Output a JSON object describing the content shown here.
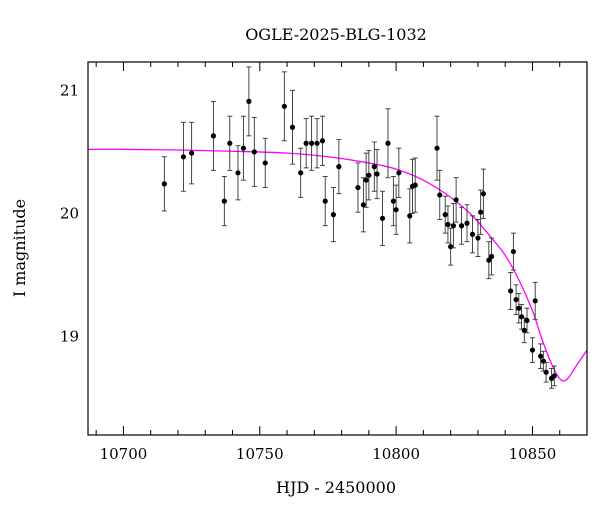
{
  "chart_data": {
    "type": "scatter",
    "title": "OGLE-2025-BLG-1032",
    "xlabel": "HJD - 2450000",
    "ylabel": "I magnitude",
    "xlim": [
      10687,
      10870
    ],
    "ylim": [
      21.23,
      18.2
    ],
    "y_inverted": true,
    "grid": false,
    "x_ticks": [
      10700,
      10750,
      10800,
      10850
    ],
    "y_ticks": [
      19,
      20,
      21
    ],
    "colors": {
      "points": "#000000",
      "model": "#ff00ff"
    },
    "model_curve": {
      "name": "",
      "points": [
        {
          "x": 10687,
          "y": 20.52
        },
        {
          "x": 10700,
          "y": 20.52
        },
        {
          "x": 10720,
          "y": 20.515
        },
        {
          "x": 10740,
          "y": 20.505
        },
        {
          "x": 10760,
          "y": 20.49
        },
        {
          "x": 10775,
          "y": 20.46
        },
        {
          "x": 10790,
          "y": 20.41
        },
        {
          "x": 10800,
          "y": 20.36
        },
        {
          "x": 10810,
          "y": 20.27
        },
        {
          "x": 10820,
          "y": 20.13
        },
        {
          "x": 10828,
          "y": 19.98
        },
        {
          "x": 10835,
          "y": 19.8
        },
        {
          "x": 10840,
          "y": 19.66
        },
        {
          "x": 10845,
          "y": 19.46
        },
        {
          "x": 10850,
          "y": 19.21
        },
        {
          "x": 10853,
          "y": 19.01
        },
        {
          "x": 10856,
          "y": 18.83
        },
        {
          "x": 10859,
          "y": 18.69
        },
        {
          "x": 10861,
          "y": 18.64
        },
        {
          "x": 10863,
          "y": 18.66
        },
        {
          "x": 10866,
          "y": 18.76
        },
        {
          "x": 10870,
          "y": 18.89
        }
      ]
    },
    "points": [
      {
        "x": 10715,
        "y": 20.24,
        "err": 0.22
      },
      {
        "x": 10722,
        "y": 20.46,
        "err": 0.28
      },
      {
        "x": 10725,
        "y": 20.49,
        "err": 0.25
      },
      {
        "x": 10733,
        "y": 20.63,
        "err": 0.28
      },
      {
        "x": 10737,
        "y": 20.1,
        "err": 0.2
      },
      {
        "x": 10739,
        "y": 20.57,
        "err": 0.22
      },
      {
        "x": 10742,
        "y": 20.33,
        "err": 0.22
      },
      {
        "x": 10744,
        "y": 20.53,
        "err": 0.26
      },
      {
        "x": 10746,
        "y": 20.91,
        "err": 0.28
      },
      {
        "x": 10748,
        "y": 20.5,
        "err": 0.28
      },
      {
        "x": 10752,
        "y": 20.41,
        "err": 0.2
      },
      {
        "x": 10759,
        "y": 20.87,
        "err": 0.28
      },
      {
        "x": 10762,
        "y": 20.7,
        "err": 0.3
      },
      {
        "x": 10765,
        "y": 20.33,
        "err": 0.2
      },
      {
        "x": 10767,
        "y": 20.57,
        "err": 0.2
      },
      {
        "x": 10769,
        "y": 20.57,
        "err": 0.22
      },
      {
        "x": 10771,
        "y": 20.57,
        "err": 0.2
      },
      {
        "x": 10773,
        "y": 20.59,
        "err": 0.2
      },
      {
        "x": 10774,
        "y": 20.1,
        "err": 0.2
      },
      {
        "x": 10777,
        "y": 19.99,
        "err": 0.22
      },
      {
        "x": 10779,
        "y": 20.38,
        "err": 0.22
      },
      {
        "x": 10786,
        "y": 20.21,
        "err": 0.2
      },
      {
        "x": 10788,
        "y": 20.07,
        "err": 0.22
      },
      {
        "x": 10789,
        "y": 20.27,
        "err": 0.22
      },
      {
        "x": 10790,
        "y": 20.31,
        "err": 0.2
      },
      {
        "x": 10792,
        "y": 20.38,
        "err": 0.2
      },
      {
        "x": 10793,
        "y": 20.32,
        "err": 0.2
      },
      {
        "x": 10795,
        "y": 19.96,
        "err": 0.22
      },
      {
        "x": 10797,
        "y": 20.57,
        "err": 0.28
      },
      {
        "x": 10799,
        "y": 20.1,
        "err": 0.2
      },
      {
        "x": 10800,
        "y": 20.03,
        "err": 0.2
      },
      {
        "x": 10801,
        "y": 20.33,
        "err": 0.2
      },
      {
        "x": 10805,
        "y": 19.98,
        "err": 0.22
      },
      {
        "x": 10806,
        "y": 20.22,
        "err": 0.22
      },
      {
        "x": 10807,
        "y": 20.23,
        "err": 0.22
      },
      {
        "x": 10815,
        "y": 20.53,
        "err": 0.26
      },
      {
        "x": 10816,
        "y": 20.15,
        "err": 0.2
      },
      {
        "x": 10818,
        "y": 19.99,
        "err": 0.15
      },
      {
        "x": 10819,
        "y": 19.91,
        "err": 0.15
      },
      {
        "x": 10820,
        "y": 19.73,
        "err": 0.15
      },
      {
        "x": 10821,
        "y": 19.9,
        "err": 0.18
      },
      {
        "x": 10822,
        "y": 20.11,
        "err": 0.18
      },
      {
        "x": 10824,
        "y": 19.9,
        "err": 0.15
      },
      {
        "x": 10826,
        "y": 19.92,
        "err": 0.15
      },
      {
        "x": 10828,
        "y": 19.83,
        "err": 0.15
      },
      {
        "x": 10830,
        "y": 19.8,
        "err": 0.15
      },
      {
        "x": 10831,
        "y": 20.01,
        "err": 0.18
      },
      {
        "x": 10832,
        "y": 20.16,
        "err": 0.2
      },
      {
        "x": 10834,
        "y": 19.62,
        "err": 0.15
      },
      {
        "x": 10835,
        "y": 19.65,
        "err": 0.15
      },
      {
        "x": 10842,
        "y": 19.37,
        "err": 0.15
      },
      {
        "x": 10843,
        "y": 19.69,
        "err": 0.15
      },
      {
        "x": 10844,
        "y": 19.3,
        "err": 0.12
      },
      {
        "x": 10845,
        "y": 19.23,
        "err": 0.12
      },
      {
        "x": 10846,
        "y": 19.16,
        "err": 0.1
      },
      {
        "x": 10847,
        "y": 19.05,
        "err": 0.1
      },
      {
        "x": 10848,
        "y": 19.13,
        "err": 0.1
      },
      {
        "x": 10850,
        "y": 18.89,
        "err": 0.1
      },
      {
        "x": 10851,
        "y": 19.29,
        "err": 0.15
      },
      {
        "x": 10853,
        "y": 18.84,
        "err": 0.1
      },
      {
        "x": 10854,
        "y": 18.8,
        "err": 0.08
      },
      {
        "x": 10855,
        "y": 18.71,
        "err": 0.08
      },
      {
        "x": 10857,
        "y": 18.66,
        "err": 0.08
      },
      {
        "x": 10858,
        "y": 18.68,
        "err": 0.08
      }
    ]
  }
}
